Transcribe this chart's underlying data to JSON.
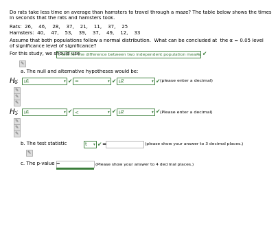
{
  "bg_color": "#ffffff",
  "text_color": "#000000",
  "green_color": "#3a7d3a",
  "box_border_color": "#3a7d3a",
  "gray_border": "#aaaaaa",
  "gray_bg": "#e8e8e8",
  "title_text": "Do rats take less time on average than hamsters to travel through a maze? The table below shows the times\nin seconds that the rats and hamsters took.",
  "rats_line": "Rats:  26,    46,    28,    37,    21,    11,    37,    25",
  "hamsters_line": "Hamsters:  40,    47,    53,    39,    37,    49,    12,    33",
  "assume_text": "Assume that both populations follow a normal distribution.  What can be concluded at  the α = 0.05 level\nof significance level of significance?",
  "for_study_prefix": "For this study, we should use",
  "study_box_text": "t-test for the difference between two independent population means",
  "checkmark": "✔",
  "pencil": "✎",
  "part_a_text": "a. The null and alternative hypotheses would be:",
  "H0_label": "H",
  "H0_sub": "0",
  "H1_label": "H",
  "H1_sub": "1",
  "mu1_text": "μ1",
  "equals_text": "=",
  "less_than_text": "<",
  "mu2_text": "μ2",
  "decimal_hint_lower": "(please enter a decimal)",
  "decimal_hint_upper": "(Please enter a decimal)",
  "part_b_prefix": "b. The test statistic",
  "t_text": "t",
  "equals_sign": "=",
  "b_hint": "(please show your answer to 3 decimal places.)",
  "part_c_prefix": "c. The p-value =",
  "c_hint": "(Please show your answer to 4 decimal places.)",
  "green_bar_color": "#3a7d3a"
}
